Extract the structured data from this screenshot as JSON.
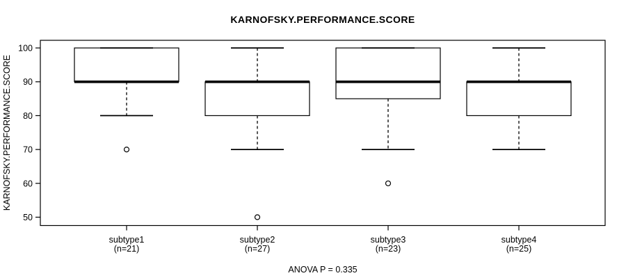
{
  "chart_data": {
    "type": "boxplot",
    "title": "KARNOFSKY.PERFORMANCE.SCORE",
    "xlabel": "",
    "ylabel": "KARNOFSKY.PERFORMANCE.SCORE",
    "annotation": "ANOVA P = 0.335",
    "anova_p": 0.335,
    "y_ticks": [
      50,
      60,
      70,
      80,
      90,
      100
    ],
    "ylim": [
      48,
      102
    ],
    "grid": false,
    "legend": "none",
    "groups": [
      {
        "label": "subtype1",
        "n_label": "(n=21)",
        "n": 21,
        "whisker_low": 80,
        "q1": 90,
        "median": 90,
        "q3": 100,
        "whisker_high": 100,
        "outliers": [
          70
        ]
      },
      {
        "label": "subtype2",
        "n_label": "(n=27)",
        "n": 27,
        "whisker_low": 70,
        "q1": 80,
        "median": 90,
        "q3": 90,
        "whisker_high": 100,
        "outliers": [
          50
        ]
      },
      {
        "label": "subtype3",
        "n_label": "(n=23)",
        "n": 23,
        "whisker_low": 70,
        "q1": 85,
        "median": 90,
        "q3": 100,
        "whisker_high": 100,
        "outliers": [
          60
        ]
      },
      {
        "label": "subtype4",
        "n_label": "(n=25)",
        "n": 25,
        "whisker_low": 70,
        "q1": 80,
        "median": 90,
        "q3": 90,
        "whisker_high": 100,
        "outliers": []
      }
    ],
    "colors": {
      "line": "#000000",
      "box_fill": "#ffffff",
      "background": "#ffffff"
    }
  }
}
